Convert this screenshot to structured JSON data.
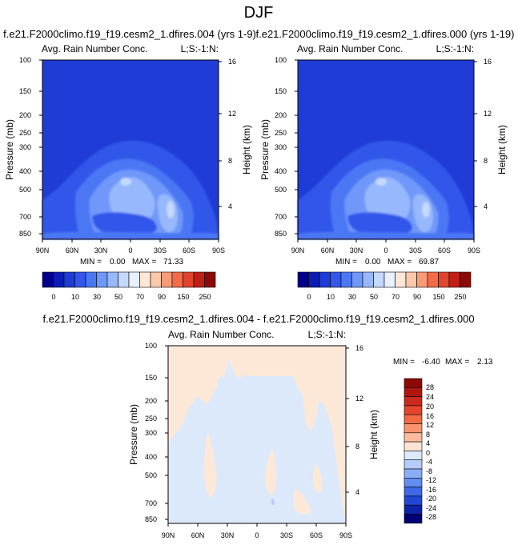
{
  "figure_title": "DJF",
  "chart_data": [
    {
      "type": "heatmap",
      "title": "f.e21.F2000climo.f19_f19.cesm2_1.dfires.004 (yrs 1-9)",
      "left_label": "Avg. Rain Number Conc.",
      "right_label": "L;S:-1:N:",
      "ylabel": "Pressure (mb)",
      "y2label": "Height (km)",
      "x_ticks": [
        "90N",
        "60N",
        "30N",
        "0",
        "30S",
        "60S",
        "90S"
      ],
      "y_ticks": [
        "100",
        "150",
        "200",
        "250",
        "300",
        "400",
        "500",
        "700",
        "850"
      ],
      "y2_ticks": [
        "16",
        "12",
        "8",
        "4"
      ],
      "min_label": "MIN =",
      "min_value": "0.00",
      "max_label": "MAX =",
      "max_value": "71.33",
      "peak_value": 71.33,
      "colorbar": {
        "labels": [
          "0",
          "10",
          "30",
          "50",
          "70",
          "90",
          "150",
          "250"
        ],
        "colors": [
          "#00008c",
          "#0a1cb4",
          "#1f3cd7",
          "#3257ea",
          "#4b77f5",
          "#6f98fa",
          "#97b8fc",
          "#c5d8fd",
          "#e8f0fe",
          "#fde8d8",
          "#fbc8ab",
          "#f89c78",
          "#f36c47",
          "#e0442c",
          "#c01f17",
          "#8c0a06"
        ]
      }
    },
    {
      "type": "heatmap",
      "title": "f.e21.F2000climo.f19_f19.cesm2_1.dfires.000 (yrs 1-19)",
      "left_label": "Avg. Rain Number Conc.",
      "right_label": "L;S:-1:N:",
      "ylabel": "Pressure (mb)",
      "y2label": "Height (km)",
      "x_ticks": [
        "90N",
        "60N",
        "30N",
        "0",
        "30S",
        "60S",
        "90S"
      ],
      "y_ticks": [
        "100",
        "150",
        "200",
        "250",
        "300",
        "400",
        "500",
        "700",
        "850"
      ],
      "y2_ticks": [
        "16",
        "12",
        "8",
        "4"
      ],
      "min_label": "MIN =",
      "min_value": "0.00",
      "max_label": "MAX =",
      "max_value": "69.87",
      "peak_value": 69.87,
      "colorbar": {
        "labels": [
          "0",
          "10",
          "30",
          "50",
          "70",
          "90",
          "150",
          "250"
        ],
        "colors": [
          "#00008c",
          "#0a1cb4",
          "#1f3cd7",
          "#3257ea",
          "#4b77f5",
          "#6f98fa",
          "#97b8fc",
          "#c5d8fd",
          "#e8f0fe",
          "#fde8d8",
          "#fbc8ab",
          "#f89c78",
          "#f36c47",
          "#e0442c",
          "#c01f17",
          "#8c0a06"
        ]
      }
    },
    {
      "type": "heatmap",
      "title": "f.e21.F2000climo.f19_f19.cesm2_1.dfires.004 - f.e21.F2000climo.f19_f19.cesm2_1.dfires.000",
      "left_label": "Avg. Rain Number Conc.",
      "right_label": "L;S:-1:N:",
      "ylabel": "Pressure (mb)",
      "y2label": "Height (km)",
      "x_ticks": [
        "90N",
        "60N",
        "30N",
        "0",
        "30S",
        "60S",
        "90S"
      ],
      "y_ticks": [
        "100",
        "150",
        "200",
        "250",
        "300",
        "400",
        "500",
        "700",
        "850"
      ],
      "y2_ticks": [
        "16",
        "12",
        "8",
        "4"
      ],
      "min_label": "MIN =",
      "min_value": "-6.40",
      "max_label": "MAX =",
      "max_value": "2.13",
      "colorbar": {
        "labels": [
          "28",
          "24",
          "20",
          "16",
          "12",
          "8",
          "4",
          "0",
          "-4",
          "-8",
          "-12",
          "-16",
          "-20",
          "-24",
          "-28"
        ],
        "colors": [
          "#8c0a06",
          "#b0150f",
          "#cc2a1c",
          "#e4452c",
          "#f46a45",
          "#f99470",
          "#fbbb9c",
          "#fde4d2",
          "#dce9fb",
          "#b5cdfa",
          "#8aaef6",
          "#628df1",
          "#3e6ae8",
          "#2247d4",
          "#0c24a8",
          "#000074"
        ]
      }
    }
  ]
}
